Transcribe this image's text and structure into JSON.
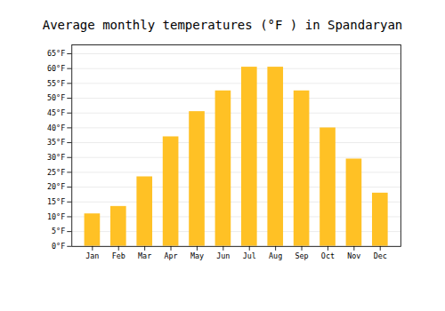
{
  "chart_data": {
    "type": "bar",
    "title": "Average monthly temperatures (°F ) in Spandaryan",
    "categories": [
      "Jan",
      "Feb",
      "Mar",
      "Apr",
      "May",
      "Jun",
      "Jul",
      "Aug",
      "Sep",
      "Oct",
      "Nov",
      "Dec"
    ],
    "values": [
      11,
      13.5,
      23.5,
      37,
      45.5,
      52.5,
      60.5,
      60.5,
      52.5,
      40,
      29.5,
      18
    ],
    "color": "#FFC125",
    "ylim": [
      0,
      68
    ],
    "yticks": [
      {
        "value": 0,
        "label": "0°F"
      },
      {
        "value": 5,
        "label": "5°F"
      },
      {
        "value": 10,
        "label": "10°F"
      },
      {
        "value": 15,
        "label": "15°F"
      },
      {
        "value": 20,
        "label": "20°F"
      },
      {
        "value": 25,
        "label": "25°F"
      },
      {
        "value": 30,
        "label": "30°F"
      },
      {
        "value": 35,
        "label": "35°F"
      },
      {
        "value": 40,
        "label": "40°F"
      },
      {
        "value": 45,
        "label": "45°F"
      },
      {
        "value": 50,
        "label": "50°F"
      },
      {
        "value": 55,
        "label": "55°F"
      },
      {
        "value": 60,
        "label": "60°F"
      },
      {
        "value": 65,
        "label": "65°F"
      }
    ],
    "grid": true
  }
}
